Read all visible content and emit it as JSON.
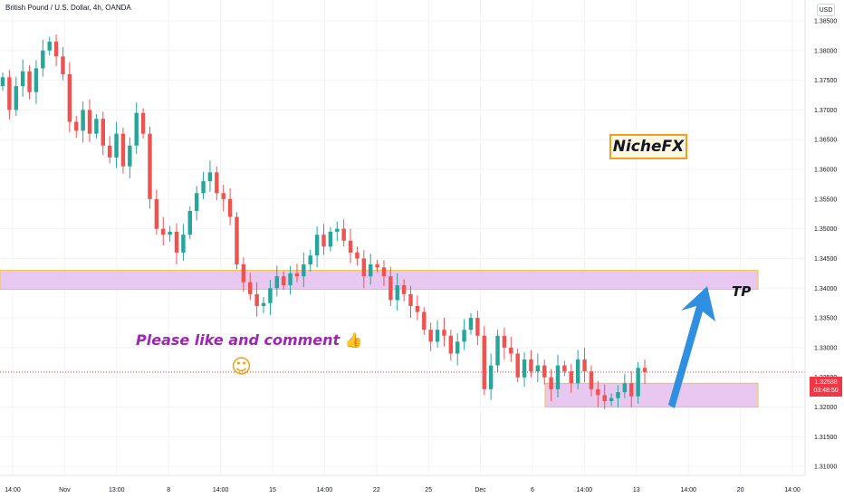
{
  "header": {
    "symbol_title": "British Pound / U.S. Dollar, 4h, OANDA",
    "currency_button": "USD"
  },
  "chart_data": {
    "type": "candlestick",
    "title": "British Pound / U.S. Dollar, 4h, OANDA",
    "currency": "USD",
    "ylim": [
      1.3085,
      1.3885
    ],
    "y_ticks": [
      "1.38500",
      "1.38000",
      "1.37500",
      "1.37000",
      "1.36500",
      "1.36000",
      "1.35500",
      "1.35000",
      "1.34500",
      "1.34000",
      "1.33500",
      "1.33000",
      "1.32500",
      "1.32000",
      "1.31500",
      "1.31000"
    ],
    "x_ticks": [
      "14:00",
      "Nov",
      "13:00",
      "8",
      "14:00",
      "15",
      "14:00",
      "22",
      "25",
      "Dec",
      "6",
      "14:00",
      "13",
      "14:00",
      "20",
      "14:00"
    ],
    "last_price": "1.32588",
    "countdown": "03:48:50",
    "zones": [
      {
        "label": "TP",
        "low": 1.3398,
        "high": 1.343
      },
      {
        "label": "",
        "low": 1.32,
        "high": 1.324
      }
    ],
    "colors": {
      "up": "#26a69a",
      "down": "#ef5350",
      "zone_fill": "#e8c8f0",
      "zone_border": "#f0c24a",
      "arrow": "#2f8fe0",
      "price_line": "#f23645"
    },
    "closes": [
      1.3755,
      1.37,
      1.374,
      1.3765,
      1.373,
      1.377,
      1.38,
      1.3815,
      1.379,
      1.376,
      1.368,
      1.3665,
      1.37,
      1.366,
      1.3685,
      1.364,
      1.362,
      1.366,
      1.3605,
      1.364,
      1.3695,
      1.366,
      1.355,
      1.35,
      1.349,
      1.3495,
      1.346,
      1.349,
      1.353,
      1.356,
      1.358,
      1.3595,
      1.356,
      1.355,
      1.352,
      1.344,
      1.341,
      1.339,
      1.337,
      1.3375,
      1.34,
      1.342,
      1.3405,
      1.3425,
      1.342,
      1.344,
      1.3455,
      1.349,
      1.347,
      1.3495,
      1.35,
      1.348,
      1.346,
      1.345,
      1.342,
      1.344,
      1.3435,
      1.342,
      1.338,
      1.3405,
      1.339,
      1.337,
      1.336,
      1.333,
      1.331,
      1.333,
      1.332,
      1.329,
      1.331,
      1.333,
      1.335,
      1.332,
      1.323,
      1.327,
      1.332,
      1.33,
      1.329,
      1.325,
      1.328,
      1.326,
      1.327,
      1.325,
      1.323,
      1.327,
      1.326,
      1.324,
      1.328,
      1.326,
      1.323,
      1.322,
      1.321,
      1.3215,
      1.3225,
      1.324,
      1.3218,
      1.3266,
      1.3259
    ]
  },
  "annotations": {
    "like_text": "Please like and comment",
    "thumbs_emoji": "👍",
    "smiley": "☺",
    "brand": "NicheFX",
    "tp_label": "TP"
  }
}
